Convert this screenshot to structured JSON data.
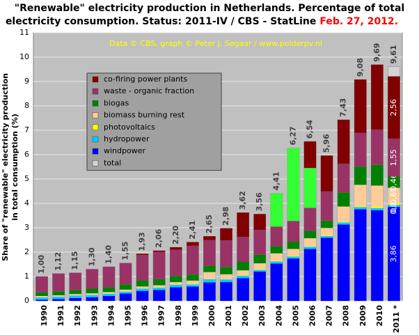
{
  "chart_data": {
    "type": "bar",
    "title_line1": "\"Renewable\" electricity production in Netherlands. Percentage of total",
    "title_line2": "electricity consumption. Status: 2011-IV / CBS - StatLine",
    "title_date": "Feb. 27, 2012.",
    "subtitle": "Data © CBS, graph © Peter J. Segaar / www.polderpv.nl",
    "ylabel_line1": "Share of \"renewable\" electricity production",
    "ylabel_line2": "in total consumption (%)",
    "categories": [
      "1990",
      "1991",
      "1992",
      "1993",
      "1994",
      "1995",
      "1996",
      "1997",
      "1998",
      "1999",
      "2000",
      "2001",
      "2002",
      "2003",
      "2004",
      "2005",
      "2006",
      "2007",
      "2008",
      "2009",
      "2010",
      "2011 *"
    ],
    "ylim": [
      0,
      11
    ],
    "yticks": [
      0,
      1,
      2,
      3,
      4,
      5,
      6,
      7,
      8,
      9,
      10,
      11
    ],
    "grid": true,
    "stacked": true,
    "series": [
      {
        "name": "windpower",
        "color": "#0000ff",
        "values": [
          0.05,
          0.08,
          0.12,
          0.15,
          0.2,
          0.3,
          0.41,
          0.45,
          0.56,
          0.59,
          0.76,
          0.77,
          0.93,
          1.2,
          1.53,
          1.74,
          2.13,
          2.59,
          3.13,
          3.76,
          3.72,
          3.86
        ],
        "value_labels": [
          null,
          null,
          null,
          null,
          null,
          null,
          null,
          null,
          null,
          null,
          null,
          null,
          null,
          null,
          null,
          null,
          null,
          null,
          null,
          null,
          null,
          "3,86"
        ]
      },
      {
        "name": "hydropower",
        "color": "#00ccff",
        "values": [
          0.09,
          0.09,
          0.1,
          0.09,
          0.09,
          0.08,
          0.09,
          0.09,
          0.1,
          0.08,
          0.13,
          0.11,
          0.1,
          0.07,
          0.09,
          0.08,
          0.09,
          0.07,
          0.09,
          0.09,
          0.09,
          0.08
        ],
        "value_labels": [
          null,
          null,
          null,
          null,
          null,
          null,
          null,
          null,
          null,
          null,
          null,
          null,
          null,
          null,
          null,
          null,
          null,
          null,
          null,
          null,
          null,
          "0,08"
        ]
      },
      {
        "name": "photovoltaics",
        "color": "#ffff00",
        "values": [
          0,
          0,
          0,
          0,
          0,
          0,
          0,
          0.01,
          0.01,
          0.01,
          0.01,
          0.01,
          0.02,
          0.02,
          0.03,
          0.03,
          0.03,
          0.03,
          0.03,
          0.04,
          0.05,
          0.05
        ],
        "value_labels": [
          null,
          null,
          null,
          null,
          null,
          null,
          null,
          null,
          null,
          null,
          null,
          null,
          null,
          null,
          null,
          null,
          null,
          null,
          null,
          null,
          null,
          "0,05"
        ]
      },
      {
        "name": "biomass burning rest",
        "color": "#ffcc99",
        "values": [
          0.06,
          0.06,
          0.06,
          0.07,
          0.07,
          0.08,
          0.09,
          0.09,
          0.1,
          0.15,
          0.28,
          0.2,
          0.2,
          0.25,
          0.3,
          0.28,
          0.32,
          0.3,
          0.62,
          0.87,
          0.87,
          0.65
        ],
        "value_labels": [
          null,
          null,
          null,
          null,
          null,
          null,
          null,
          null,
          null,
          null,
          null,
          null,
          null,
          null,
          null,
          null,
          null,
          null,
          null,
          null,
          null,
          "0,65"
        ]
      },
      {
        "name": "biogas",
        "color": "#008000",
        "values": [
          0.15,
          0.16,
          0.16,
          0.19,
          0.2,
          0.22,
          0.25,
          0.25,
          0.25,
          0.25,
          0.26,
          0.3,
          0.35,
          0.35,
          0.3,
          0.3,
          0.3,
          0.3,
          0.58,
          0.75,
          0.85,
          0.46
        ],
        "value_labels": [
          null,
          null,
          null,
          null,
          null,
          null,
          null,
          null,
          null,
          null,
          null,
          null,
          null,
          null,
          null,
          null,
          null,
          null,
          null,
          null,
          null,
          "0,46"
        ]
      },
      {
        "name": "waste - organic fraction",
        "color": "#993366",
        "values": [
          0.65,
          0.73,
          0.71,
          0.8,
          0.84,
          0.87,
          1.04,
          1.12,
          1.08,
          1.18,
          1.06,
          1.09,
          1.02,
          1.02,
          0.8,
          0.85,
          0.95,
          1.2,
          1.18,
          1.38,
          1.45,
          1.55
        ],
        "value_labels": [
          null,
          null,
          null,
          null,
          null,
          null,
          null,
          null,
          null,
          null,
          null,
          null,
          null,
          null,
          null,
          null,
          null,
          null,
          null,
          null,
          null,
          "1,55"
        ]
      },
      {
        "color": "#33ff33",
        "values": [
          0,
          0,
          0,
          0,
          0,
          0,
          0,
          0,
          0,
          0,
          0,
          0,
          0,
          0,
          1.36,
          2.99,
          1.63,
          0,
          0,
          0,
          0,
          0
        ]
      },
      {
        "name": "co-firing power plants",
        "color": "#800000",
        "values": [
          0,
          0,
          0,
          0,
          0,
          0,
          0.05,
          0.05,
          0.1,
          0.15,
          0.15,
          0.5,
          1.0,
          0.65,
          0,
          0,
          1.09,
          1.47,
          1.8,
          2.19,
          2.66,
          2.56
        ],
        "value_labels": [
          null,
          null,
          null,
          null,
          null,
          null,
          null,
          null,
          null,
          null,
          null,
          null,
          null,
          null,
          null,
          null,
          null,
          null,
          null,
          null,
          null,
          "2,56"
        ]
      }
    ],
    "total": {
      "name": "total",
      "color": "#d4d4d4",
      "values": [
        1.0,
        1.12,
        1.15,
        1.3,
        1.4,
        1.55,
        1.93,
        2.06,
        2.2,
        2.41,
        2.65,
        2.98,
        3.62,
        3.56,
        4.41,
        6.27,
        6.54,
        5.96,
        7.43,
        9.08,
        9.69,
        9.61
      ],
      "value_labels": [
        "1,00",
        "1,12",
        "1,15",
        "1,30",
        "1,40",
        "1,55",
        "1,93",
        "2,06",
        "2,20",
        "2,41",
        "2,65",
        "2,98",
        "3,62",
        "3,56",
        "4,41",
        "6,27",
        "6,54",
        "5,96",
        "7,43",
        "9,08",
        "9,69",
        "9,61"
      ]
    }
  }
}
